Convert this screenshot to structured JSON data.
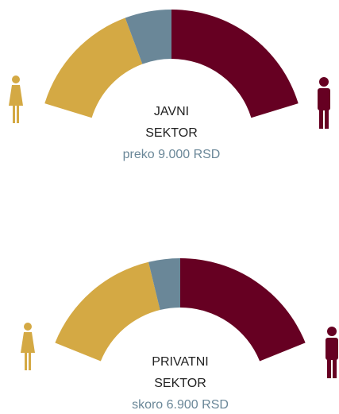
{
  "chart_data": [
    {
      "type": "half-donut",
      "title_lines": [
        "JAVNI",
        "SEKTOR"
      ],
      "subtitle": "preko 9.000 RSD",
      "values": [
        36,
        14,
        50
      ],
      "colors": [
        "#d4a944",
        "#6a8798",
        "#660022"
      ]
    },
    {
      "type": "half-donut",
      "title_lines": [
        "PRIVATNI",
        "SEKTOR"
      ],
      "subtitle": "skoro 6.900 RSD",
      "values": [
        40,
        10,
        50
      ],
      "colors": [
        "#d4a944",
        "#6a8798",
        "#660022"
      ]
    }
  ]
}
